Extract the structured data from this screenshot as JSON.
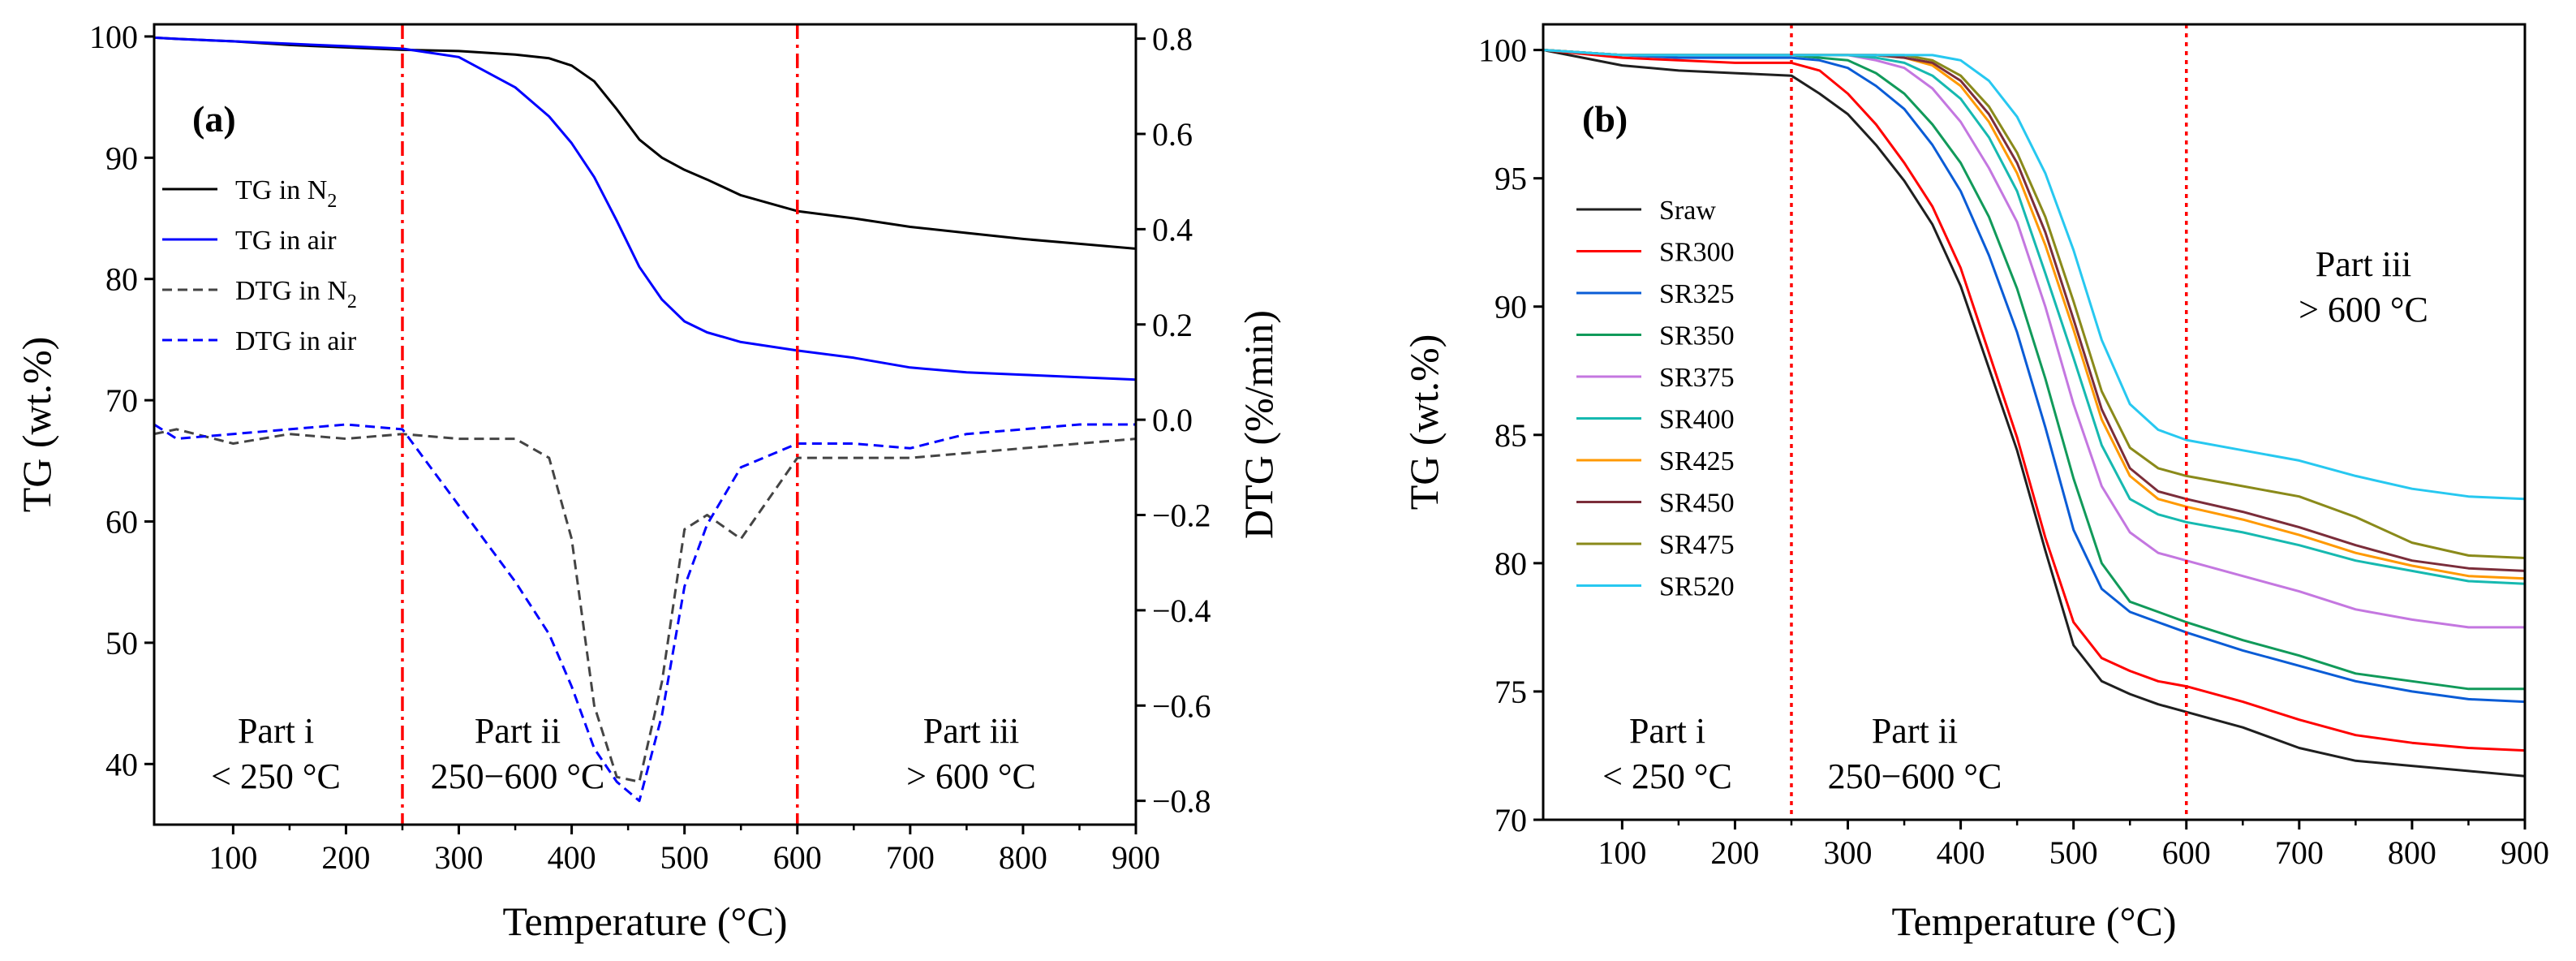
{
  "chart_data": [
    {
      "panel": "(a)",
      "type": "line",
      "x": [
        30,
        50,
        100,
        150,
        200,
        250,
        300,
        350,
        380,
        400,
        420,
        440,
        460,
        480,
        500,
        520,
        550,
        600,
        650,
        700,
        750,
        800,
        850,
        900
      ],
      "xlabel": "Temperature (°C)",
      "ylabel": "TG (wt.%)",
      "y2label": "DTG (%/min)",
      "xlim": [
        30,
        900
      ],
      "ylim": [
        35,
        101
      ],
      "y2lim": [
        -0.85,
        0.83
      ],
      "xticks": [
        "100",
        "200",
        "300",
        "400",
        "500",
        "600",
        "700",
        "800",
        "900"
      ],
      "yticks": [
        "40",
        "50",
        "60",
        "70",
        "80",
        "90",
        "100"
      ],
      "y2ticks": [
        "−0.8",
        "−0.6",
        "−0.4",
        "−0.2",
        "0.0",
        "0.2",
        "0.4",
        "0.6",
        "0.8"
      ],
      "legend": {
        "position": "upper-left"
      },
      "series": [
        {
          "name": "TG in N",
          "name_sub": "2",
          "axis": "left",
          "style": "solid",
          "color": "#000000",
          "values": [
            99.9,
            99.8,
            99.6,
            99.3,
            99.1,
            98.9,
            98.8,
            98.5,
            98.2,
            97.6,
            96.3,
            94.0,
            91.5,
            90.0,
            89.0,
            88.2,
            86.9,
            85.6,
            85.0,
            84.3,
            83.8,
            83.3,
            82.9,
            82.5
          ]
        },
        {
          "name": "TG in air",
          "axis": "left",
          "style": "solid",
          "color": "#0000ff",
          "values": [
            99.9,
            99.8,
            99.6,
            99.4,
            99.2,
            99.0,
            98.3,
            95.8,
            93.4,
            91.2,
            88.4,
            84.8,
            81.0,
            78.3,
            76.5,
            75.6,
            74.8,
            74.1,
            73.5,
            72.7,
            72.3,
            72.1,
            71.9,
            71.7
          ]
        },
        {
          "name": "DTG in N",
          "name_sub": "2",
          "axis": "right",
          "style": "dashed",
          "color": "#444444",
          "values": [
            -0.03,
            -0.02,
            -0.05,
            -0.03,
            -0.04,
            -0.03,
            -0.04,
            -0.04,
            -0.08,
            -0.25,
            -0.6,
            -0.75,
            -0.76,
            -0.55,
            -0.23,
            -0.2,
            -0.25,
            -0.08,
            -0.08,
            -0.08,
            -0.07,
            -0.06,
            -0.05,
            -0.04
          ]
        },
        {
          "name": "DTG in air",
          "axis": "right",
          "style": "dashed",
          "color": "#0000ff",
          "values": [
            -0.01,
            -0.04,
            -0.03,
            -0.02,
            -0.01,
            -0.02,
            -0.18,
            -0.34,
            -0.45,
            -0.56,
            -0.69,
            -0.76,
            -0.8,
            -0.62,
            -0.35,
            -0.22,
            -0.1,
            -0.05,
            -0.05,
            -0.06,
            -0.03,
            -0.02,
            -0.01,
            -0.01
          ]
        }
      ],
      "vlines": [
        250,
        600
      ],
      "vline_color": "#ff0000",
      "annotations": [
        {
          "lines": [
            "Part i",
            "< 250 °C"
          ]
        },
        {
          "lines": [
            "Part ii",
            "250−600 °C"
          ]
        },
        {
          "lines": [
            "Part iii",
            "> 600 °C"
          ]
        }
      ]
    },
    {
      "panel": "(b)",
      "type": "line",
      "x": [
        30,
        100,
        150,
        200,
        250,
        275,
        300,
        325,
        350,
        375,
        400,
        425,
        450,
        475,
        500,
        525,
        550,
        575,
        600,
        650,
        700,
        750,
        800,
        850,
        900
      ],
      "xlabel": "Temperature (°C)",
      "ylabel": "TG (wt.%)",
      "xlim": [
        30,
        900
      ],
      "ylim": [
        70,
        101
      ],
      "xticks": [
        "100",
        "200",
        "300",
        "400",
        "500",
        "600",
        "700",
        "800",
        "900"
      ],
      "yticks": [
        "70",
        "75",
        "80",
        "85",
        "90",
        "95",
        "100"
      ],
      "legend": {
        "position": "left"
      },
      "series": [
        {
          "name": "Sraw",
          "color": "#1f1f1f",
          "values": [
            100,
            99.4,
            99.2,
            99.1,
            99.0,
            98.3,
            97.5,
            96.3,
            94.9,
            93.2,
            90.8,
            87.6,
            84.4,
            80.5,
            76.8,
            75.4,
            74.9,
            74.5,
            74.2,
            73.6,
            72.8,
            72.3,
            72.1,
            71.9,
            71.7
          ]
        },
        {
          "name": "SR300",
          "color": "#ff0000",
          "values": [
            100,
            99.7,
            99.6,
            99.5,
            99.5,
            99.2,
            98.3,
            97.1,
            95.6,
            93.9,
            91.5,
            88.2,
            84.9,
            81.0,
            77.7,
            76.3,
            75.8,
            75.4,
            75.2,
            74.6,
            73.9,
            73.3,
            73.0,
            72.8,
            72.7
          ]
        },
        {
          "name": "SR325",
          "color": "#0a5cd6",
          "values": [
            100,
            99.8,
            99.7,
            99.7,
            99.7,
            99.6,
            99.3,
            98.6,
            97.7,
            96.3,
            94.5,
            92.0,
            89.0,
            85.3,
            81.3,
            79.0,
            78.1,
            77.7,
            77.3,
            76.6,
            76.0,
            75.4,
            75.0,
            74.7,
            74.6
          ]
        },
        {
          "name": "SR350",
          "color": "#119a5a",
          "values": [
            100,
            99.8,
            99.8,
            99.8,
            99.8,
            99.7,
            99.6,
            99.1,
            98.3,
            97.1,
            95.6,
            93.5,
            90.7,
            87.2,
            83.3,
            80.0,
            78.5,
            78.1,
            77.7,
            77.0,
            76.4,
            75.7,
            75.4,
            75.1,
            75.1
          ]
        },
        {
          "name": "SR375",
          "color": "#c477e0",
          "values": [
            100,
            99.8,
            99.8,
            99.8,
            99.8,
            99.8,
            99.8,
            99.6,
            99.3,
            98.5,
            97.2,
            95.4,
            93.3,
            90.0,
            86.2,
            83.0,
            81.2,
            80.4,
            80.1,
            79.5,
            78.9,
            78.2,
            77.8,
            77.5,
            77.5
          ]
        },
        {
          "name": "SR400",
          "color": "#16b9b0",
          "values": [
            100,
            99.8,
            99.8,
            99.8,
            99.8,
            99.8,
            99.8,
            99.7,
            99.5,
            99.0,
            98.1,
            96.6,
            94.5,
            91.3,
            88.0,
            84.6,
            82.5,
            81.9,
            81.6,
            81.2,
            80.7,
            80.1,
            79.7,
            79.3,
            79.2
          ]
        },
        {
          "name": "SR425",
          "color": "#ff9900",
          "values": [
            100,
            99.8,
            99.8,
            99.8,
            99.8,
            99.8,
            99.8,
            99.8,
            99.7,
            99.4,
            98.6,
            97.2,
            95.2,
            92.4,
            89.1,
            85.6,
            83.4,
            82.5,
            82.2,
            81.7,
            81.1,
            80.4,
            79.9,
            79.5,
            79.4
          ]
        },
        {
          "name": "SR450",
          "color": "#7b2d3a",
          "values": [
            100,
            99.8,
            99.8,
            99.8,
            99.8,
            99.8,
            99.8,
            99.8,
            99.7,
            99.5,
            98.8,
            97.5,
            95.6,
            92.9,
            89.5,
            86.0,
            83.7,
            82.8,
            82.5,
            82.0,
            81.4,
            80.7,
            80.1,
            79.8,
            79.7
          ]
        },
        {
          "name": "SR475",
          "color": "#8a8a1a",
          "values": [
            100,
            99.8,
            99.8,
            99.8,
            99.8,
            99.8,
            99.8,
            99.8,
            99.8,
            99.6,
            99.0,
            97.8,
            96.0,
            93.5,
            90.2,
            86.7,
            84.5,
            83.7,
            83.4,
            83.0,
            82.6,
            81.8,
            80.8,
            80.3,
            80.2
          ]
        },
        {
          "name": "SR520",
          "color": "#27c8f0",
          "values": [
            100,
            99.8,
            99.8,
            99.8,
            99.8,
            99.8,
            99.8,
            99.8,
            99.8,
            99.8,
            99.6,
            98.8,
            97.4,
            95.2,
            92.2,
            88.7,
            86.2,
            85.2,
            84.8,
            84.4,
            84.0,
            83.4,
            82.9,
            82.6,
            82.5
          ]
        }
      ],
      "vlines": [
        250,
        600
      ],
      "vline_color": "#ff0000",
      "annotations": [
        {
          "lines": [
            "Part i",
            "< 250 °C"
          ]
        },
        {
          "lines": [
            "Part ii",
            "250−600 °C"
          ]
        },
        {
          "lines": [
            "Part iii",
            "> 600 °C"
          ]
        }
      ]
    }
  ]
}
